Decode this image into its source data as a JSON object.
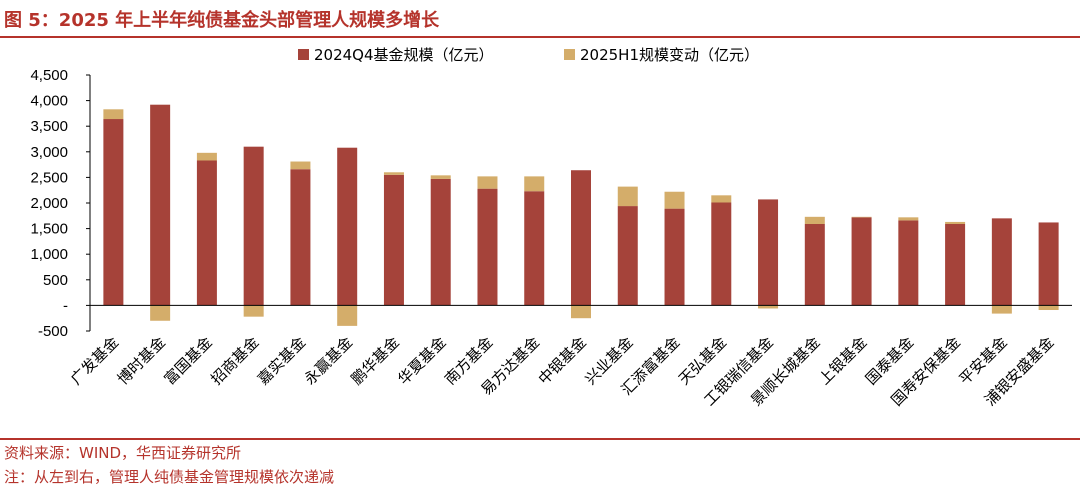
{
  "header": {
    "title": "图 5：2025 年上半年纯债基金头部管理人规模多增长"
  },
  "footer": {
    "source": "资料来源：WIND，华西证券研究所",
    "note": "注：从左到右，管理人纯债基金管理规模依次递减"
  },
  "colors": {
    "accent": "#b5332b",
    "base_series": "#a5433a",
    "change_series": "#d4ad6a"
  },
  "chart_data": {
    "type": "bar",
    "stacked": true,
    "title": "",
    "xlabel": "",
    "ylabel": "",
    "ylim": [
      -500,
      4500
    ],
    "yticks": [
      -500,
      0,
      500,
      1000,
      1500,
      2000,
      2500,
      3000,
      3500,
      4000,
      4500
    ],
    "ytick_labels": [
      "-500",
      "-",
      "500",
      "1,000",
      "1,500",
      "2,000",
      "2,500",
      "3,000",
      "3,500",
      "4,000",
      "4,500"
    ],
    "grid": false,
    "legend_position": "top-center",
    "categories": [
      "广发基金",
      "博时基金",
      "富国基金",
      "招商基金",
      "嘉实基金",
      "永赢基金",
      "鹏华基金",
      "华夏基金",
      "南方基金",
      "易方达基金",
      "中银基金",
      "兴业基金",
      "汇添富基金",
      "天弘基金",
      "工银瑞信基金",
      "景顺长城基金",
      "上银基金",
      "国泰基金",
      "国寿安保基金",
      "平安基金",
      "浦银安盛基金"
    ],
    "series": [
      {
        "name": "2024Q4基金规模（亿元）",
        "color": "#a5433a",
        "values": [
          3640,
          3920,
          2830,
          3100,
          2660,
          3080,
          2550,
          2470,
          2280,
          2230,
          2640,
          1940,
          1890,
          2010,
          2070,
          1590,
          1720,
          1660,
          1590,
          1700,
          1620
        ]
      },
      {
        "name": "2025H1规模变动（亿元）",
        "color": "#d4ad6a",
        "values": [
          190,
          -300,
          150,
          -220,
          150,
          -400,
          50,
          70,
          240,
          290,
          -250,
          380,
          330,
          140,
          -60,
          140,
          10,
          60,
          40,
          -160,
          -90
        ]
      }
    ]
  }
}
